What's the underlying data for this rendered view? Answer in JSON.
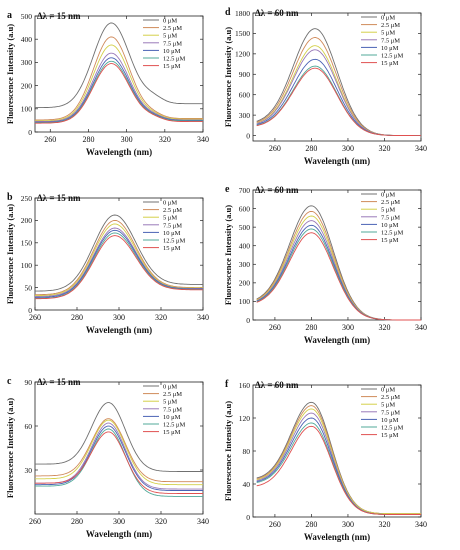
{
  "legend_labels": [
    "0 μM",
    "2.5 μM",
    "5 μM",
    "7.5 μM",
    "10 μM",
    "12.5 μM",
    "15 μM"
  ],
  "series_colors": [
    "#707070",
    "#d08a5a",
    "#d4d04a",
    "#9a7ab8",
    "#4a62b4",
    "#50a898",
    "#e05050"
  ],
  "chart_data": [
    {
      "type": "line",
      "panel_label": "a",
      "annotation": "Δλ = 15 nm",
      "xlabel": "Wavelength (nm)",
      "ylabel": "Fluorescence Intensity (a.u)",
      "xlim": [
        252,
        340
      ],
      "ylim": [
        0,
        500
      ],
      "xticks": [
        260,
        280,
        300,
        320,
        340
      ],
      "yticks": [
        0,
        100,
        200,
        300,
        400,
        500
      ],
      "x_start": 252,
      "x_end": 340,
      "series": [
        {
          "name": "0 μM",
          "peak_x": 292,
          "peak_y": 470,
          "width": 9.5,
          "start_y": 105,
          "end_y": 122,
          "shoulder_y": 145
        },
        {
          "name": "2.5 μM",
          "peak_x": 292,
          "peak_y": 410,
          "width": 9.5,
          "start_y": 52,
          "end_y": 58,
          "shoulder_y": 72
        },
        {
          "name": "5 μM",
          "peak_x": 292,
          "peak_y": 375,
          "width": 9.5,
          "start_y": 48,
          "end_y": 55,
          "shoulder_y": 68
        },
        {
          "name": "7.5 μM",
          "peak_x": 292,
          "peak_y": 340,
          "width": 9.5,
          "start_y": 45,
          "end_y": 52,
          "shoulder_y": 65
        },
        {
          "name": "10 μM",
          "peak_x": 292,
          "peak_y": 320,
          "width": 9.5,
          "start_y": 42,
          "end_y": 50,
          "shoulder_y": 62
        },
        {
          "name": "12.5 μM",
          "peak_x": 292,
          "peak_y": 305,
          "width": 9.5,
          "start_y": 40,
          "end_y": 48,
          "shoulder_y": 60
        },
        {
          "name": "15 μM",
          "peak_x": 292,
          "peak_y": 295,
          "width": 9.5,
          "start_y": 38,
          "end_y": 45,
          "shoulder_y": 58
        }
      ]
    },
    {
      "type": "line",
      "panel_label": "d",
      "annotation": "Δλ = 60 nm",
      "xlabel": "Wavelength (nm)",
      "ylabel": "Fluorescence Intensity (a.u)",
      "xlim": [
        248,
        340
      ],
      "ylim": [
        -80,
        1800
      ],
      "xticks": [
        260,
        280,
        300,
        320,
        340
      ],
      "yticks": [
        0,
        300,
        600,
        900,
        1200,
        1500,
        1800
      ],
      "x_start": 250,
      "x_end": 340,
      "series": [
        {
          "name": "0 μM",
          "peak_x": 282,
          "peak_y": 1570,
          "width": 12,
          "start_y": 170,
          "end_y": 0,
          "shoulder_y": 0
        },
        {
          "name": "2.5 μM",
          "peak_x": 282,
          "peak_y": 1440,
          "width": 12,
          "start_y": 160,
          "end_y": 0,
          "shoulder_y": 0
        },
        {
          "name": "5 μM",
          "peak_x": 282,
          "peak_y": 1320,
          "width": 12,
          "start_y": 150,
          "end_y": 0,
          "shoulder_y": 0
        },
        {
          "name": "7.5 μM",
          "peak_x": 282,
          "peak_y": 1260,
          "width": 12,
          "start_y": 145,
          "end_y": 0,
          "shoulder_y": 0
        },
        {
          "name": "10 μM",
          "peak_x": 282,
          "peak_y": 1120,
          "width": 12,
          "start_y": 135,
          "end_y": 0,
          "shoulder_y": 0
        },
        {
          "name": "12.5 μM",
          "peak_x": 282,
          "peak_y": 1020,
          "width": 12,
          "start_y": 125,
          "end_y": 0,
          "shoulder_y": 0
        },
        {
          "name": "15 μM",
          "peak_x": 282,
          "peak_y": 990,
          "width": 12,
          "start_y": 120,
          "end_y": 0,
          "shoulder_y": 0
        }
      ]
    },
    {
      "type": "line",
      "panel_label": "b",
      "annotation": "Δλ = 15 nm",
      "xlabel": "Wavelength (nm)",
      "ylabel": "Fluorescence Intensity (a.u)",
      "xlim": [
        260,
        340
      ],
      "ylim": [
        0,
        250
      ],
      "xticks": [
        260,
        280,
        300,
        320,
        340
      ],
      "yticks": [
        0,
        50,
        100,
        150,
        200,
        250
      ],
      "x_start": 260,
      "x_end": 340,
      "series": [
        {
          "name": "0 μM",
          "peak_x": 298,
          "peak_y": 212,
          "width": 10,
          "start_y": 42,
          "end_y": 57,
          "shoulder_y": 0
        },
        {
          "name": "2.5 μM",
          "peak_x": 298,
          "peak_y": 200,
          "width": 10,
          "start_y": 34,
          "end_y": 50,
          "shoulder_y": 0
        },
        {
          "name": "5 μM",
          "peak_x": 298,
          "peak_y": 192,
          "width": 10,
          "start_y": 32,
          "end_y": 49,
          "shoulder_y": 0
        },
        {
          "name": "7.5 μM",
          "peak_x": 298,
          "peak_y": 183,
          "width": 10,
          "start_y": 30,
          "end_y": 48,
          "shoulder_y": 0
        },
        {
          "name": "10 μM",
          "peak_x": 298,
          "peak_y": 178,
          "width": 10,
          "start_y": 28,
          "end_y": 47,
          "shoulder_y": 0
        },
        {
          "name": "12.5 μM",
          "peak_x": 298,
          "peak_y": 172,
          "width": 10,
          "start_y": 26,
          "end_y": 46,
          "shoulder_y": 0
        },
        {
          "name": "15 μM",
          "peak_x": 298,
          "peak_y": 166,
          "width": 10,
          "start_y": 25,
          "end_y": 45,
          "shoulder_y": 0
        }
      ]
    },
    {
      "type": "line",
      "panel_label": "e",
      "annotation": "Δλ = 60 nm",
      "xlabel": "Wavelength (nm)",
      "ylabel": "Fluorescence Intensity (a.u)",
      "xlim": [
        248,
        340
      ],
      "ylim": [
        0,
        700
      ],
      "xticks": [
        260,
        280,
        300,
        320,
        340
      ],
      "yticks": [
        0,
        100,
        200,
        300,
        400,
        500,
        600,
        700
      ],
      "x_start": 250,
      "x_end": 340,
      "series": [
        {
          "name": "0 μM",
          "peak_x": 280,
          "peak_y": 615,
          "width": 12,
          "start_y": 90,
          "end_y": 0,
          "shoulder_y": 0
        },
        {
          "name": "2.5 μM",
          "peak_x": 280,
          "peak_y": 585,
          "width": 12,
          "start_y": 88,
          "end_y": 0,
          "shoulder_y": 0
        },
        {
          "name": "5 μM",
          "peak_x": 280,
          "peak_y": 560,
          "width": 12,
          "start_y": 86,
          "end_y": 0,
          "shoulder_y": 0
        },
        {
          "name": "7.5 μM",
          "peak_x": 280,
          "peak_y": 535,
          "width": 12,
          "start_y": 84,
          "end_y": 0,
          "shoulder_y": 0
        },
        {
          "name": "10 μM",
          "peak_x": 280,
          "peak_y": 510,
          "width": 12,
          "start_y": 82,
          "end_y": 0,
          "shoulder_y": 0
        },
        {
          "name": "12.5 μM",
          "peak_x": 280,
          "peak_y": 490,
          "width": 12,
          "start_y": 80,
          "end_y": 0,
          "shoulder_y": 0
        },
        {
          "name": "15 μM",
          "peak_x": 280,
          "peak_y": 470,
          "width": 12,
          "start_y": 78,
          "end_y": 0,
          "shoulder_y": 0
        }
      ]
    },
    {
      "type": "line",
      "panel_label": "c",
      "annotation": "Δλ = 15 nm",
      "xlabel": "Wavelength (nm)",
      "ylabel": "Fluorescence Intensity (a.u)",
      "xlim": [
        260,
        340
      ],
      "ylim": [
        0,
        90
      ],
      "xticks": [
        260,
        280,
        300,
        320,
        340
      ],
      "yticks": [
        30,
        60,
        90
      ],
      "x_start": 260,
      "x_end": 340,
      "series": [
        {
          "name": "0 μM",
          "peak_x": 295,
          "peak_y": 76,
          "width": 8,
          "start_y": 34,
          "end_y": 29,
          "shoulder_y": 0
        },
        {
          "name": "2.5 μM",
          "peak_x": 295,
          "peak_y": 65,
          "width": 8,
          "start_y": 26,
          "end_y": 22,
          "shoulder_y": 0
        },
        {
          "name": "5 μM",
          "peak_x": 295,
          "peak_y": 64,
          "width": 8,
          "start_y": 24,
          "end_y": 20,
          "shoulder_y": 0
        },
        {
          "name": "7.5 μM",
          "peak_x": 295,
          "peak_y": 62,
          "width": 8,
          "start_y": 21,
          "end_y": 17,
          "shoulder_y": 0
        },
        {
          "name": "10 μM",
          "peak_x": 295,
          "peak_y": 60,
          "width": 8,
          "start_y": 20,
          "end_y": 16,
          "shoulder_y": 0
        },
        {
          "name": "12.5 μM",
          "peak_x": 295,
          "peak_y": 58,
          "width": 8,
          "start_y": 19,
          "end_y": 12,
          "shoulder_y": 0
        },
        {
          "name": "15 μM",
          "peak_x": 295,
          "peak_y": 56,
          "width": 8,
          "start_y": 21,
          "end_y": 14,
          "shoulder_y": 0
        }
      ]
    },
    {
      "type": "line",
      "panel_label": "f",
      "annotation": "Δλ = 60 nm",
      "xlabel": "Wavelength (nm)",
      "ylabel": "Fluorescence Intensity (a.u)",
      "xlim": [
        248,
        340
      ],
      "ylim": [
        0,
        160
      ],
      "xticks": [
        260,
        280,
        300,
        320,
        340
      ],
      "yticks": [
        0,
        40,
        80,
        120,
        160
      ],
      "x_start": 250,
      "x_end": 340,
      "series": [
        {
          "name": "0 μM",
          "peak_x": 280,
          "peak_y": 139,
          "width": 11,
          "start_y": 45,
          "end_y": 4,
          "shoulder_y": 0
        },
        {
          "name": "2.5 μM",
          "peak_x": 280,
          "peak_y": 135,
          "width": 11,
          "start_y": 44,
          "end_y": 4,
          "shoulder_y": 0
        },
        {
          "name": "5 μM",
          "peak_x": 280,
          "peak_y": 131,
          "width": 11,
          "start_y": 43,
          "end_y": 4,
          "shoulder_y": 0
        },
        {
          "name": "7.5 μM",
          "peak_x": 280,
          "peak_y": 126,
          "width": 11,
          "start_y": 42,
          "end_y": 3,
          "shoulder_y": 0
        },
        {
          "name": "10 μM",
          "peak_x": 280,
          "peak_y": 120,
          "width": 11,
          "start_y": 41,
          "end_y": 3,
          "shoulder_y": 0
        },
        {
          "name": "12.5 μM",
          "peak_x": 280,
          "peak_y": 114,
          "width": 11,
          "start_y": 40,
          "end_y": 3,
          "shoulder_y": 0
        },
        {
          "name": "15 μM",
          "peak_x": 280,
          "peak_y": 110,
          "width": 11,
          "start_y": 36,
          "end_y": 3,
          "shoulder_y": 0
        }
      ]
    }
  ]
}
